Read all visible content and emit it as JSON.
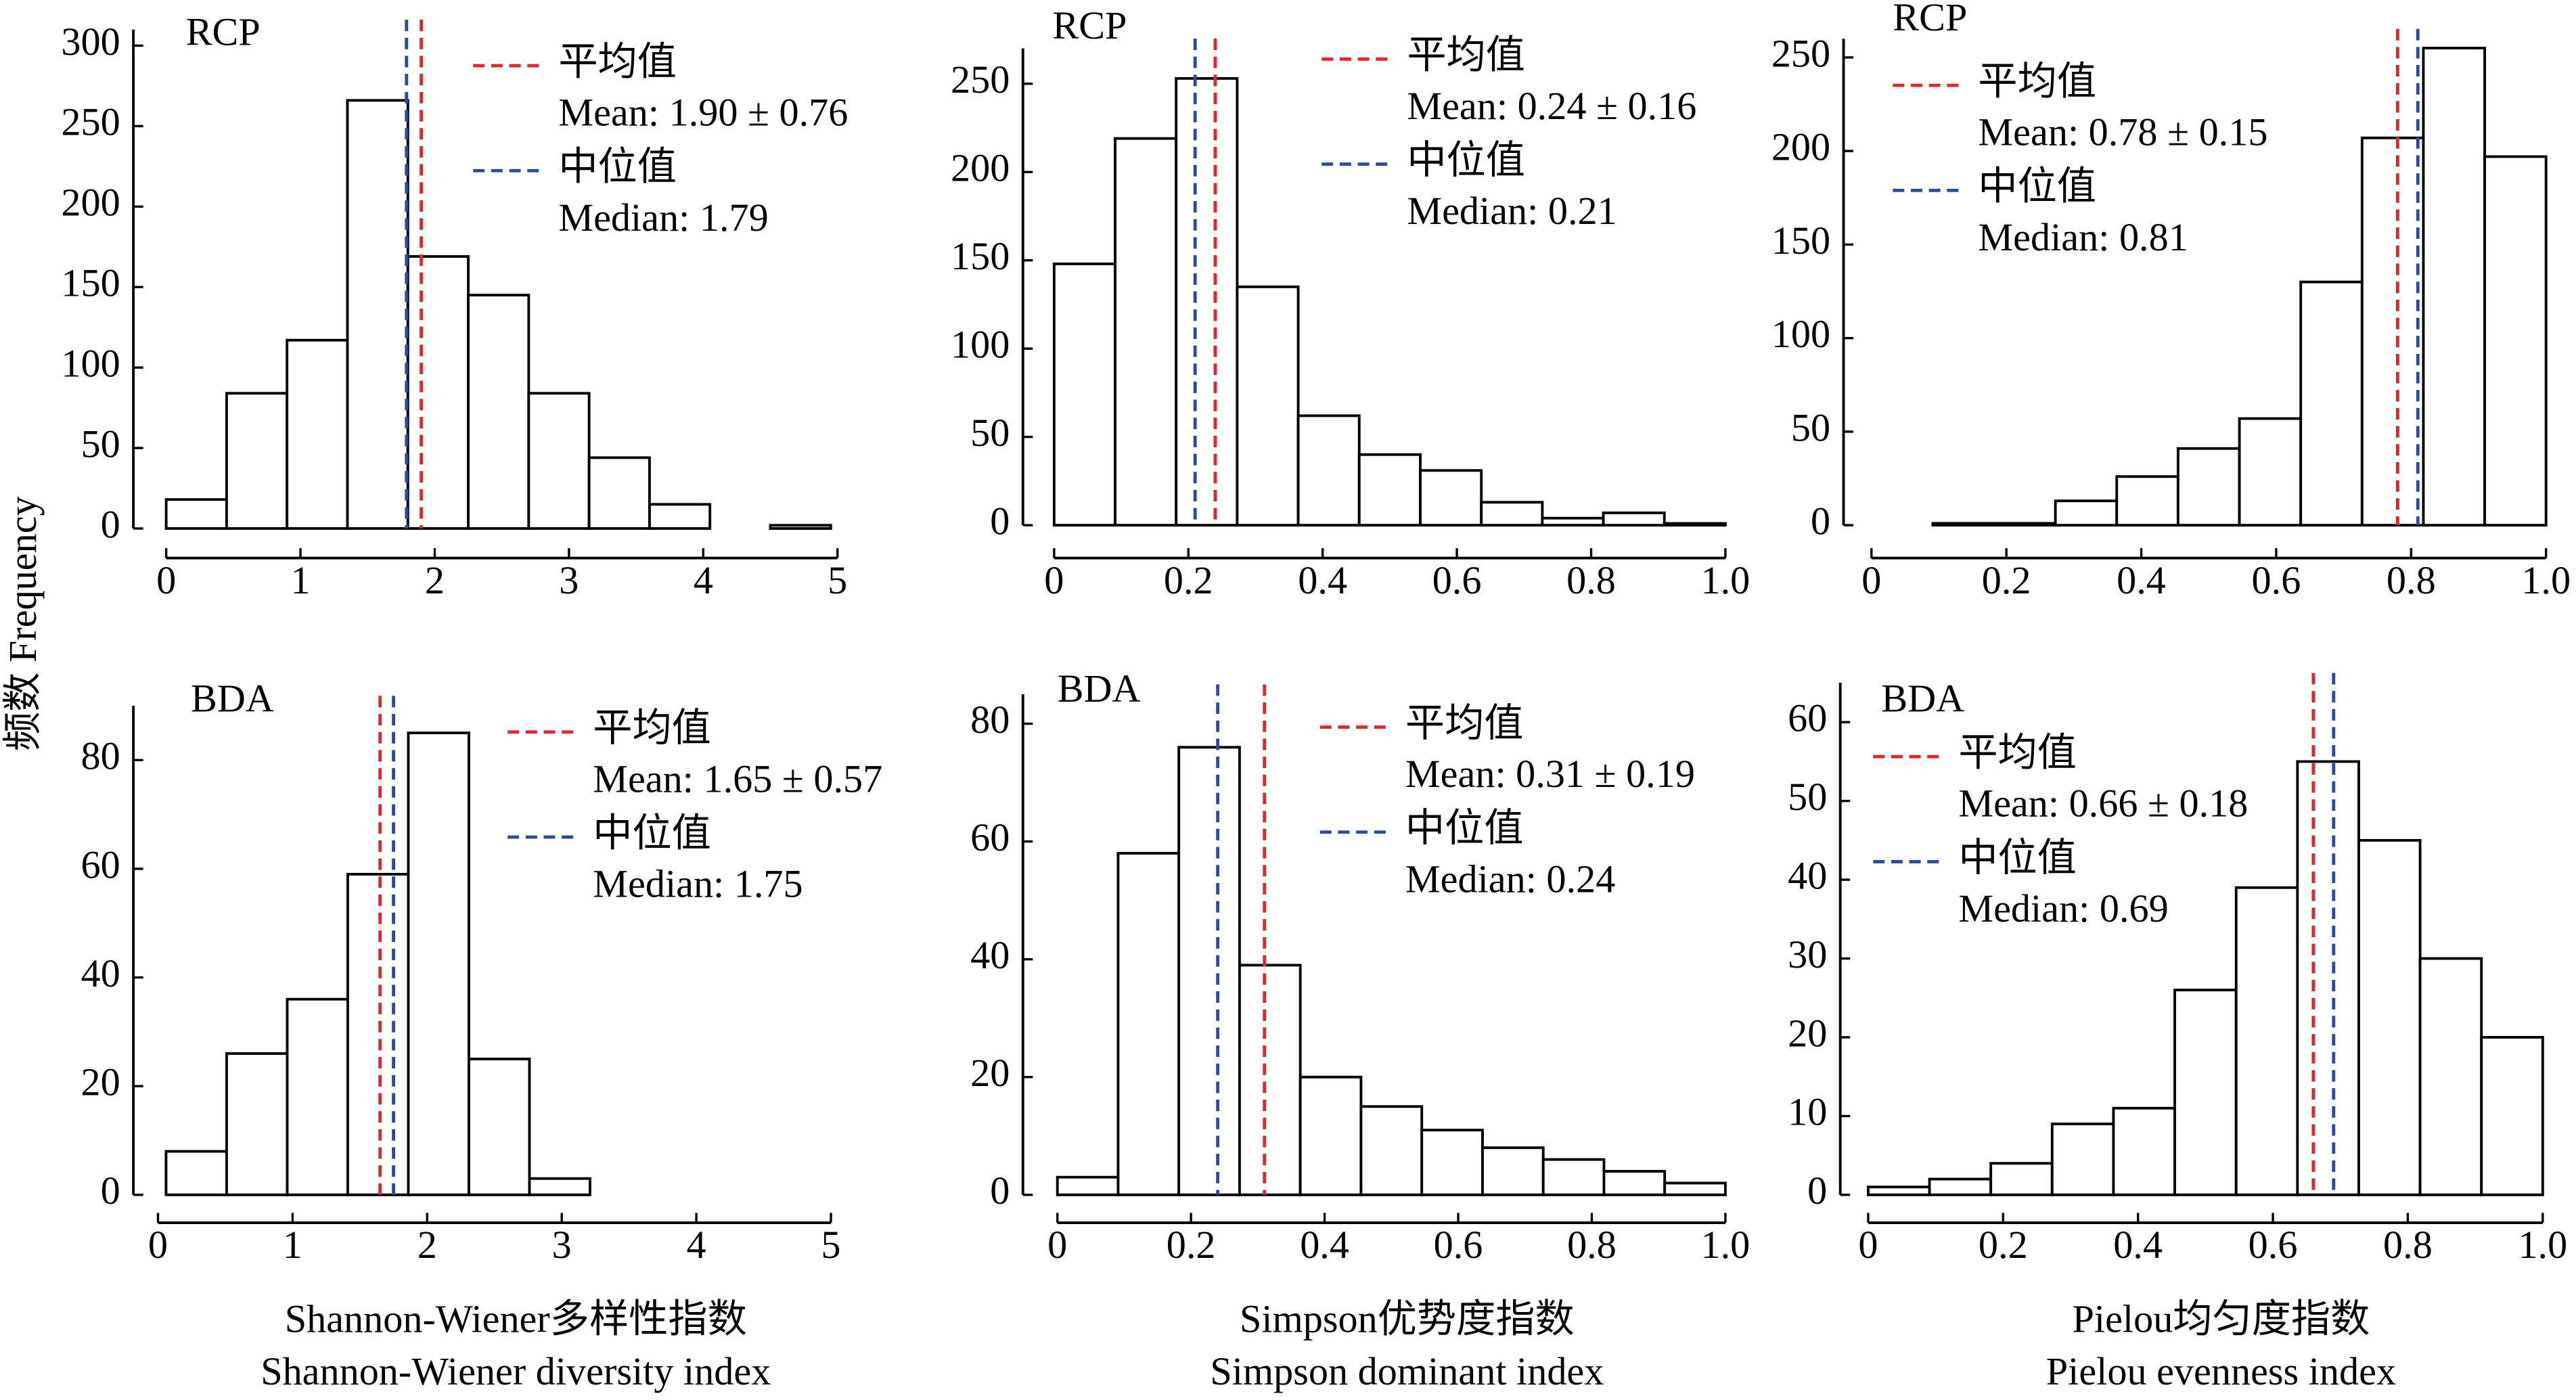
{
  "ylabel": "频数 Frequency",
  "chart_data": [
    {
      "type": "histogram",
      "label": "RCP",
      "bins": [
        0,
        0.45,
        0.9,
        1.35,
        1.8,
        2.25,
        2.7,
        3.15,
        3.6,
        4.05,
        4.5,
        4.95
      ],
      "counts": [
        18,
        84,
        117,
        266,
        169,
        145,
        84,
        44,
        15,
        0,
        2
      ],
      "xlim": [
        0,
        5
      ],
      "xticks": [
        0,
        1,
        2,
        3,
        4,
        5
      ],
      "ylim": [
        0,
        310
      ],
      "yticks": [
        0,
        50,
        100,
        150,
        200,
        250,
        300
      ],
      "mean": 1.9,
      "median": 1.79,
      "mean_color": "#e0262b",
      "median_color": "#2a4c9c",
      "legend": [
        "平均值",
        "Mean: 1.90 ± 0.76",
        "中位值",
        "Median: 1.79"
      ]
    },
    {
      "type": "histogram",
      "label": "RCP",
      "bins": [
        0,
        0.0909,
        0.1818,
        0.2727,
        0.3636,
        0.4545,
        0.5455,
        0.6364,
        0.7273,
        0.8182,
        0.9091,
        1.0
      ],
      "counts": [
        148,
        219,
        253,
        135,
        62,
        40,
        31,
        13,
        4,
        7,
        1
      ],
      "xlim": [
        0,
        1
      ],
      "xticks": [
        0,
        0.2,
        0.4,
        0.6,
        0.8,
        {
          "value": 1,
          "label": "1.0"
        }
      ],
      "ylim": [
        0,
        270
      ],
      "yticks": [
        0,
        50,
        100,
        150,
        200,
        250
      ],
      "mean": 0.24,
      "median": 0.21,
      "mean_color": "#e0262b",
      "median_color": "#2a4c9c",
      "legend": [
        "平均值",
        "Mean: 0.24 ± 0.16",
        "中位值",
        "Median: 0.21"
      ]
    },
    {
      "type": "histogram",
      "label": "RCP",
      "bins": [
        0,
        0.0909,
        0.1818,
        0.2727,
        0.3636,
        0.4545,
        0.5455,
        0.6364,
        0.7273,
        0.8182,
        0.9091,
        1.0
      ],
      "counts": [
        0,
        1,
        1,
        13,
        26,
        41,
        57,
        130,
        207,
        255,
        197
      ],
      "xlim": [
        0,
        1
      ],
      "xticks": [
        0,
        0.2,
        0.4,
        0.6,
        0.8,
        {
          "value": 1,
          "label": "1.0"
        }
      ],
      "ylim": [
        0,
        260
      ],
      "yticks": [
        0,
        50,
        100,
        150,
        200,
        250
      ],
      "mean": 0.78,
      "median": 0.81,
      "mean_color": "#e0262b",
      "median_color": "#2a4c9c",
      "legend": [
        "平均值",
        "Mean: 0.78 ± 0.15",
        "中位值",
        "Median: 0.81"
      ]
    },
    {
      "type": "histogram",
      "label": "BDA",
      "bins": [
        0.06,
        0.51,
        0.96,
        1.41,
        1.86,
        2.31,
        2.76,
        3.21,
        3.66,
        4.11,
        4.56,
        5.01
      ],
      "counts": [
        8,
        26,
        36,
        59,
        85,
        25,
        3,
        0,
        0,
        0,
        0
      ],
      "xlim": [
        0,
        5
      ],
      "xticks": [
        0,
        1,
        2,
        3,
        4,
        5
      ],
      "ylim": [
        0,
        90
      ],
      "yticks": [
        0,
        20,
        40,
        60,
        80
      ],
      "mean": 1.65,
      "median": 1.75,
      "mean_color": "#e0262b",
      "median_color": "#2a4c9c",
      "legend": [
        "平均值",
        "Mean: 1.65 ± 0.57",
        "中位值",
        "Median: 1.75"
      ],
      "xlabel": [
        "Shannon-Wiener多样性指数",
        "Shannon-Wiener diversity index"
      ]
    },
    {
      "type": "histogram",
      "label": "BDA",
      "bins": [
        0,
        0.0909,
        0.1818,
        0.2727,
        0.3636,
        0.4545,
        0.5455,
        0.6364,
        0.7273,
        0.8182,
        0.9091,
        1.0
      ],
      "counts": [
        3,
        58,
        76,
        39,
        20,
        15,
        11,
        8,
        6,
        4,
        2
      ],
      "xlim": [
        0,
        1
      ],
      "xticks": [
        0,
        0.2,
        0.4,
        0.6,
        0.8,
        {
          "value": 1,
          "label": "1.0"
        }
      ],
      "ylim": [
        0,
        85
      ],
      "yticks": [
        0,
        20,
        40,
        60,
        80
      ],
      "mean": 0.31,
      "median": 0.24,
      "mean_color": "#e0262b",
      "median_color": "#2a4c9c",
      "legend": [
        "平均值",
        "Mean: 0.31 ± 0.19",
        "中位值",
        "Median: 0.24"
      ],
      "xlabel": [
        "Simpson优势度指数",
        "Simpson dominant index"
      ]
    },
    {
      "type": "histogram",
      "label": "BDA",
      "bins": [
        0,
        0.0909,
        0.1818,
        0.2727,
        0.3636,
        0.4545,
        0.5455,
        0.6364,
        0.7273,
        0.8182,
        0.9091,
        1.0
      ],
      "counts": [
        1,
        2,
        4,
        9,
        11,
        26,
        39,
        55,
        45,
        30,
        20
      ],
      "xlim": [
        0,
        1
      ],
      "xticks": [
        0,
        0.2,
        0.4,
        0.6,
        0.8,
        {
          "value": 1,
          "label": "1.0"
        }
      ],
      "ylim": [
        0,
        65
      ],
      "yticks": [
        0,
        10,
        20,
        30,
        40,
        50,
        60
      ],
      "mean": 0.66,
      "median": 0.69,
      "mean_color": "#e0262b",
      "median_color": "#2a4c9c",
      "legend": [
        "平均值",
        "Mean: 0.66 ± 0.18",
        "中位值",
        "Median: 0.69"
      ],
      "xlabel": [
        "Pielou均匀度指数",
        "Pielou evenness index"
      ]
    }
  ]
}
